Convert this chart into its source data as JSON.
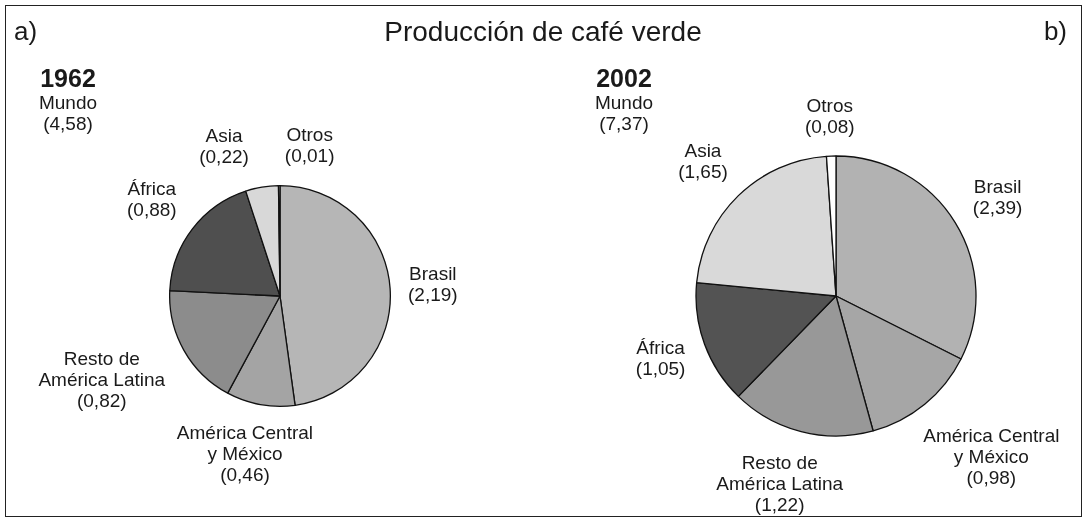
{
  "chart_data": [
    {
      "type": "pie",
      "title": "1962",
      "subtitle": "Mundo (4,58)",
      "annotations": [
        "a)",
        "Producción de café verde"
      ],
      "categories": [
        "Brasil",
        "América Central y México",
        "Resto de América Latina",
        "África",
        "Asia",
        "Otros"
      ],
      "values": [
        2.19,
        0.46,
        0.82,
        0.88,
        0.22,
        0.01
      ],
      "value_labels": [
        "(2,19)",
        "(0,46)",
        "(0,82)",
        "(0,88)",
        "(0,22)",
        "(0,01)"
      ],
      "colors": [
        "#b6b6b6",
        "#a4a4a4",
        "#8c8c8c",
        "#4f4f4f",
        "#d8d8d8",
        "#ffffff"
      ]
    },
    {
      "type": "pie",
      "title": "2002",
      "subtitle": "Mundo (7,37)",
      "annotations": [
        "b)"
      ],
      "categories": [
        "Brasil",
        "América Central y México",
        "Resto de América Latina",
        "África",
        "Asia",
        "Otros"
      ],
      "values": [
        2.39,
        0.98,
        1.22,
        1.05,
        1.65,
        0.08
      ],
      "value_labels": [
        "(2,39)",
        "(0,98)",
        "(1,22)",
        "(1,05)",
        "(1,65)",
        "(0,08)"
      ],
      "colors": [
        "#b2b2b2",
        "#a6a6a6",
        "#989898",
        "#535353",
        "#d9d9d9",
        "#ffffff"
      ]
    }
  ]
}
